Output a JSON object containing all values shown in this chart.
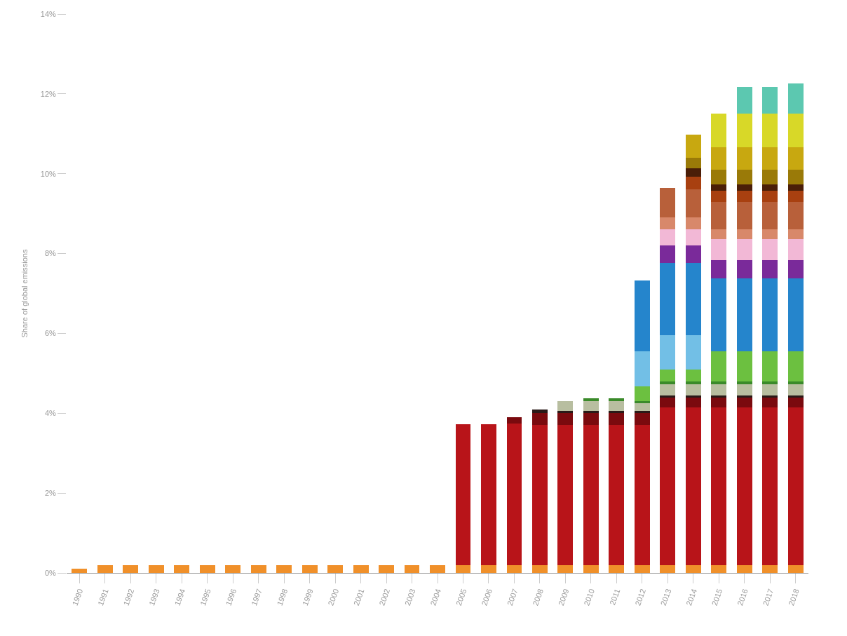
{
  "chart_data": {
    "type": "bar",
    "stacked": true,
    "ylabel": "Share of global emissions",
    "categories": [
      "1990",
      "1991",
      "1992",
      "1993",
      "1994",
      "1995",
      "1996",
      "1997",
      "1998",
      "1999",
      "2000",
      "2001",
      "2002",
      "2003",
      "2004",
      "2005",
      "2006",
      "2007",
      "2008",
      "2009",
      "2010",
      "2011",
      "2012",
      "2013",
      "2014",
      "2015",
      "2016",
      "2017",
      "2018"
    ],
    "ylim": [
      0,
      14
    ],
    "yticks": [
      {
        "value": 0,
        "label": "0%"
      },
      {
        "value": 2,
        "label": "2%"
      },
      {
        "value": 4,
        "label": "4%"
      },
      {
        "value": 6,
        "label": "6%"
      },
      {
        "value": 8,
        "label": "8%"
      },
      {
        "value": 10,
        "label": "10%"
      },
      {
        "value": 12,
        "label": "12%"
      },
      {
        "value": 14,
        "label": "14%"
      }
    ],
    "series": [
      {
        "color": "#f0902a",
        "values": [
          0.1,
          0.2,
          0.2,
          0.2,
          0.2,
          0.2,
          0.2,
          0.2,
          0.2,
          0.2,
          0.2,
          0.2,
          0.2,
          0.2,
          0.2,
          0.2,
          0.2,
          0.2,
          0.2,
          0.2,
          0.2,
          0.2,
          0.2,
          0.2,
          0.2,
          0.2,
          0.2,
          0.2,
          0.2
        ]
      },
      {
        "color": "#b81419",
        "values": [
          null,
          null,
          null,
          null,
          null,
          null,
          null,
          null,
          null,
          null,
          null,
          null,
          null,
          null,
          null,
          3.52,
          3.52,
          3.55,
          3.5,
          3.5,
          3.5,
          3.5,
          3.5,
          3.95,
          3.95,
          3.95,
          3.95,
          3.95,
          3.95
        ]
      },
      {
        "color": "#7a0a0e",
        "values": [
          null,
          null,
          null,
          null,
          null,
          null,
          null,
          null,
          null,
          null,
          null,
          null,
          null,
          null,
          null,
          null,
          null,
          0.15,
          0.3,
          0.3,
          0.3,
          0.3,
          0.3,
          0.25,
          0.25,
          0.25,
          0.25,
          0.25,
          0.25
        ]
      },
      {
        "color": "#2a1a18",
        "values": [
          null,
          null,
          null,
          null,
          null,
          null,
          null,
          null,
          null,
          null,
          null,
          null,
          null,
          null,
          null,
          null,
          null,
          null,
          0.1,
          0.05,
          0.05,
          0.05,
          0.05,
          0.05,
          0.05,
          0.05,
          0.05,
          0.05,
          0.05
        ]
      },
      {
        "color": "#b8bea0",
        "values": [
          null,
          null,
          null,
          null,
          null,
          null,
          null,
          null,
          null,
          null,
          null,
          null,
          null,
          null,
          null,
          null,
          null,
          null,
          null,
          0.25,
          0.25,
          0.25,
          0.2,
          0.27,
          0.27,
          0.27,
          0.27,
          0.27,
          0.27
        ]
      },
      {
        "color": "#3a8a2a",
        "values": [
          null,
          null,
          null,
          null,
          null,
          null,
          null,
          null,
          null,
          null,
          null,
          null,
          null,
          null,
          null,
          null,
          null,
          null,
          null,
          null,
          0.08,
          0.08,
          0.05,
          0.08,
          0.08,
          0.08,
          0.08,
          0.08,
          0.08
        ]
      },
      {
        "color": "#6cc040",
        "values": [
          null,
          null,
          null,
          null,
          null,
          null,
          null,
          null,
          null,
          null,
          null,
          null,
          null,
          null,
          null,
          null,
          null,
          null,
          null,
          null,
          null,
          null,
          0.37,
          0.3,
          0.3,
          0.75,
          0.75,
          0.75,
          0.75
        ]
      },
      {
        "color": "#72bfe6",
        "values": [
          null,
          null,
          null,
          null,
          null,
          null,
          null,
          null,
          null,
          null,
          null,
          null,
          null,
          null,
          null,
          null,
          null,
          null,
          null,
          null,
          null,
          null,
          0.88,
          0.85,
          0.85,
          null,
          null,
          null,
          null
        ]
      },
      {
        "color": "#2585cc",
        "values": [
          null,
          null,
          null,
          null,
          null,
          null,
          null,
          null,
          null,
          null,
          null,
          null,
          null,
          null,
          null,
          null,
          null,
          null,
          null,
          null,
          null,
          null,
          1.78,
          1.82,
          1.82,
          1.82,
          1.82,
          1.82,
          1.82
        ]
      },
      {
        "color": "#7a2a9a",
        "values": [
          null,
          null,
          null,
          null,
          null,
          null,
          null,
          null,
          null,
          null,
          null,
          null,
          null,
          null,
          null,
          null,
          null,
          null,
          null,
          null,
          null,
          null,
          null,
          0.43,
          0.43,
          0.47,
          0.47,
          0.47,
          0.47
        ]
      },
      {
        "color": "#f2b8d6",
        "values": [
          null,
          null,
          null,
          null,
          null,
          null,
          null,
          null,
          null,
          null,
          null,
          null,
          null,
          null,
          null,
          null,
          null,
          null,
          null,
          null,
          null,
          null,
          null,
          0.4,
          0.4,
          0.53,
          0.53,
          0.53,
          0.53
        ]
      },
      {
        "color": "#d8886a",
        "values": [
          null,
          null,
          null,
          null,
          null,
          null,
          null,
          null,
          null,
          null,
          null,
          null,
          null,
          null,
          null,
          null,
          null,
          null,
          null,
          null,
          null,
          null,
          null,
          0.3,
          0.3,
          0.23,
          0.23,
          0.23,
          0.23
        ]
      },
      {
        "color": "#b8603a",
        "values": [
          null,
          null,
          null,
          null,
          null,
          null,
          null,
          null,
          null,
          null,
          null,
          null,
          null,
          null,
          null,
          null,
          null,
          null,
          null,
          null,
          null,
          null,
          null,
          0.74,
          0.7,
          0.7,
          0.7,
          0.7,
          0.7
        ]
      },
      {
        "color": "#a84010",
        "values": [
          null,
          null,
          null,
          null,
          null,
          null,
          null,
          null,
          null,
          null,
          null,
          null,
          null,
          null,
          null,
          null,
          null,
          null,
          null,
          null,
          null,
          null,
          null,
          null,
          0.32,
          0.27,
          0.27,
          0.27,
          0.27
        ]
      },
      {
        "color": "#4a1e08",
        "values": [
          null,
          null,
          null,
          null,
          null,
          null,
          null,
          null,
          null,
          null,
          null,
          null,
          null,
          null,
          null,
          null,
          null,
          null,
          null,
          null,
          null,
          null,
          null,
          null,
          0.21,
          0.17,
          0.17,
          0.17,
          0.17
        ]
      },
      {
        "color": "#9a7a08",
        "values": [
          null,
          null,
          null,
          null,
          null,
          null,
          null,
          null,
          null,
          null,
          null,
          null,
          null,
          null,
          null,
          null,
          null,
          null,
          null,
          null,
          null,
          null,
          null,
          null,
          0.27,
          0.36,
          0.36,
          0.36,
          0.36
        ]
      },
      {
        "color": "#c8a810",
        "values": [
          null,
          null,
          null,
          null,
          null,
          null,
          null,
          null,
          null,
          null,
          null,
          null,
          null,
          null,
          null,
          null,
          null,
          null,
          null,
          null,
          null,
          null,
          null,
          null,
          0.58,
          0.56,
          0.56,
          0.56,
          0.56
        ]
      },
      {
        "color": "#d8d828",
        "values": [
          null,
          null,
          null,
          null,
          null,
          null,
          null,
          null,
          null,
          null,
          null,
          null,
          null,
          null,
          null,
          null,
          null,
          null,
          null,
          null,
          null,
          null,
          null,
          null,
          null,
          0.84,
          0.84,
          0.84,
          0.84
        ]
      },
      {
        "color": "#5cc8b0",
        "values": [
          null,
          null,
          null,
          null,
          null,
          null,
          null,
          null,
          null,
          null,
          null,
          null,
          null,
          null,
          null,
          null,
          null,
          null,
          null,
          null,
          null,
          null,
          null,
          null,
          null,
          null,
          0.68,
          0.68,
          0.76
        ]
      }
    ]
  }
}
